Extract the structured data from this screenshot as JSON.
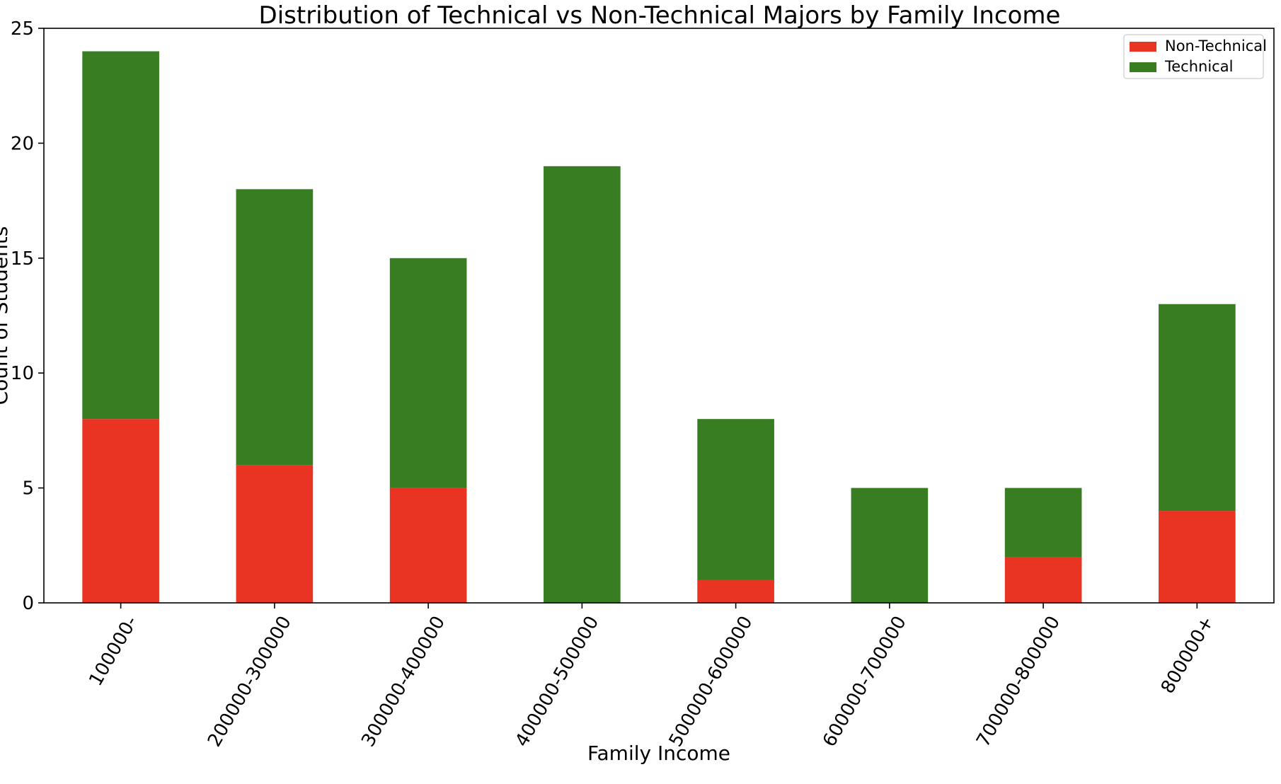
{
  "chart_data": {
    "type": "bar",
    "stacked": true,
    "title": "Distribution of Technical vs Non-Technical Majors by Family Income",
    "xlabel": "Family Income",
    "ylabel": "Count of Students",
    "categories": [
      "100000-",
      "200000-300000",
      "300000-400000",
      "400000-500000",
      "500000-600000",
      "600000-700000",
      "700000-800000",
      "800000+"
    ],
    "series": [
      {
        "name": "Non-Technical",
        "color": "#e93323",
        "values": [
          8,
          6,
          5,
          0,
          1,
          0,
          2,
          4
        ]
      },
      {
        "name": "Technical",
        "color": "#387d21",
        "values": [
          16,
          12,
          10,
          19,
          7,
          5,
          3,
          9
        ]
      }
    ],
    "ylim": [
      0,
      25
    ],
    "yticks": [
      0,
      5,
      10,
      15,
      20,
      25
    ],
    "grid": false,
    "legend_position": "top-right",
    "x_tick_rotation": -60
  }
}
